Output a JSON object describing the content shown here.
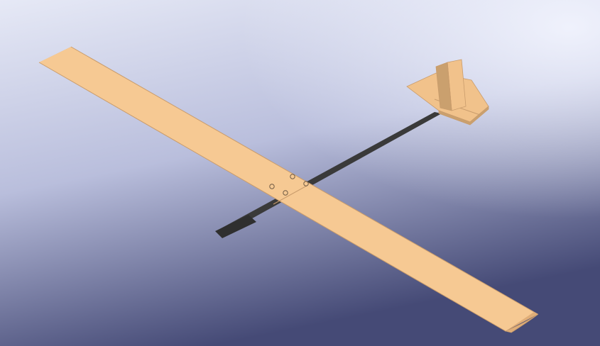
{
  "viewport": {
    "background_top": "#e6e9f6",
    "background_mid": "#b9bedc",
    "background_bottom": "#454a76",
    "highlight": "#f4f6ff"
  },
  "model": {
    "wing_color": "#f6c993",
    "wing_edge_color": "#c99c6c",
    "wing_shade_color": "#e0ae78",
    "fuselage_color": "#3a3a3a",
    "nose_color": "#2f2f2f",
    "tail_color": "#f1c28b",
    "tail_shade_color": "#caa06e",
    "bolt_color": "#6f5a44"
  }
}
